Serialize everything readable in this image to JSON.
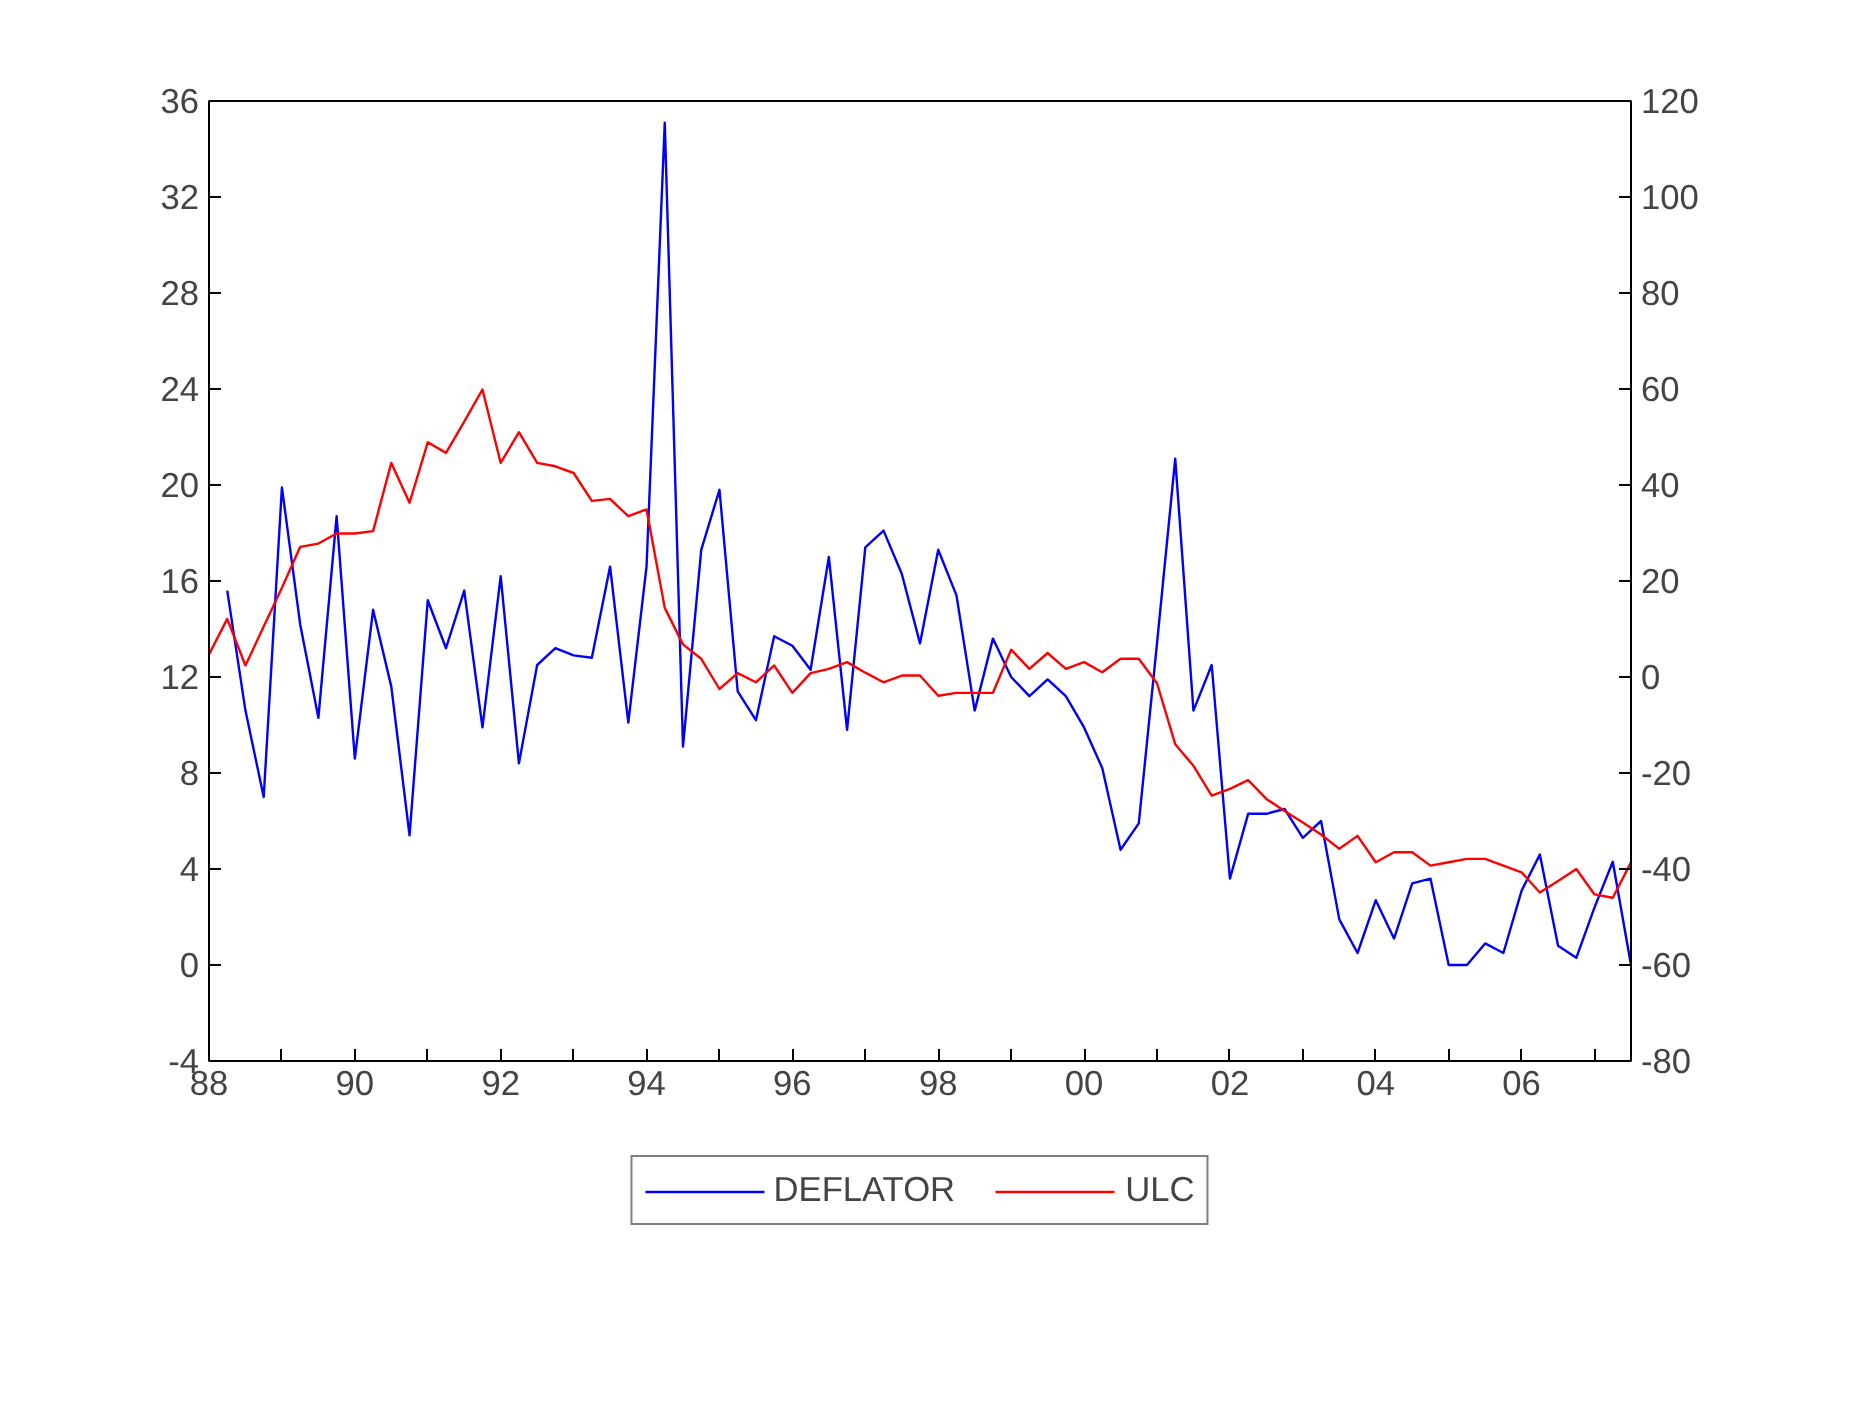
{
  "chart_data": {
    "type": "line",
    "x": [
      1988,
      1988.25,
      1988.5,
      1988.75,
      1989,
      1989.25,
      1989.5,
      1989.75,
      1990,
      1990.25,
      1990.5,
      1990.75,
      1991,
      1991.25,
      1991.5,
      1991.75,
      1992,
      1992.25,
      1992.5,
      1992.75,
      1993,
      1993.25,
      1993.5,
      1993.75,
      1994,
      1994.25,
      1994.5,
      1994.75,
      1995,
      1995.25,
      1995.5,
      1995.75,
      1996,
      1996.25,
      1996.5,
      1996.75,
      1997,
      1997.25,
      1997.5,
      1997.75,
      1998,
      1998.25,
      1998.5,
      1998.75,
      1999,
      1999.25,
      1999.5,
      1999.75,
      2000,
      2000.25,
      2000.5,
      2000.75,
      2001,
      2001.25,
      2001.5,
      2001.75,
      2002,
      2002.25,
      2002.5,
      2002.75,
      2003,
      2003.25,
      2003.5,
      2003.75,
      2004,
      2004.25,
      2004.5,
      2004.75,
      2005,
      2005.25,
      2005.5,
      2005.75,
      2006,
      2006.25,
      2006.5,
      2006.75,
      2007,
      2007.25,
      2007.5
    ],
    "series": [
      {
        "name": "DEFLATOR",
        "color": "#0000ff",
        "values": [
          null,
          15.6,
          10.6,
          7.0,
          19.9,
          14.2,
          10.3,
          18.7,
          8.6,
          14.8,
          11.6,
          5.4,
          15.2,
          13.2,
          15.6,
          9.9,
          16.2,
          8.4,
          12.5,
          13.2,
          12.9,
          12.8,
          16.6,
          10.1,
          16.6,
          35.1,
          9.1,
          17.3,
          19.8,
          11.4,
          10.2,
          13.7,
          13.3,
          12.3,
          17.0,
          9.8,
          17.4,
          18.1,
          16.3,
          13.4,
          17.3,
          15.4,
          10.6,
          13.6,
          12.0,
          11.2,
          11.9,
          11.2,
          9.9,
          8.2,
          4.8,
          5.9,
          13.4,
          21.1,
          10.6,
          12.5,
          3.6,
          6.3,
          6.3,
          6.5,
          5.3,
          6.0,
          1.9,
          0.5,
          2.7,
          1.1,
          3.4,
          3.6,
          0.0,
          0.0,
          0.9,
          0.5,
          3.1,
          4.6,
          0.8,
          0.3,
          2.4,
          4.3,
          0.0
        ]
      },
      {
        "name": "ULC",
        "color": "#ff0000",
        "axis": "y2",
        "values": [
          4.7,
          12.1,
          2.4,
          10.5,
          18.6,
          27.1,
          27.8,
          29.9,
          29.9,
          30.4,
          44.6,
          36.3,
          48.9,
          46.7,
          53.2,
          59.9,
          44.6,
          51.0,
          44.6,
          43.9,
          42.5,
          36.7,
          37.1,
          33.5,
          34.9,
          14.4,
          6.8,
          3.8,
          -2.5,
          0.8,
          -1.1,
          2.4,
          -3.3,
          0.8,
          1.7,
          3.1,
          0.9,
          -1.1,
          0.3,
          0.3,
          -3.9,
          -3.3,
          -3.3,
          -3.3,
          5.7,
          1.7,
          5.0,
          1.7,
          3.1,
          1.0,
          3.8,
          3.8,
          -1.3,
          -14.0,
          -18.5,
          -24.7,
          -23.3,
          -21.5,
          -25.4,
          -27.9,
          -30.3,
          -32.8,
          -35.8,
          -33.1,
          -38.6,
          -36.5,
          -36.5,
          -39.3,
          -38.6,
          -37.9,
          -37.9,
          -39.3,
          -40.7,
          -44.9,
          -42.5,
          -40.0,
          -45.3,
          -46.0,
          -38.6
        ]
      }
    ],
    "xlim": [
      1988,
      2007.5
    ],
    "xticks": [
      {
        "value": 1988,
        "label": "88"
      },
      {
        "value": 1989,
        "label": null
      },
      {
        "value": 1990,
        "label": "90"
      },
      {
        "value": 1991,
        "label": null
      },
      {
        "value": 1992,
        "label": "92"
      },
      {
        "value": 1993,
        "label": null
      },
      {
        "value": 1994,
        "label": "94"
      },
      {
        "value": 1995,
        "label": null
      },
      {
        "value": 1996,
        "label": "96"
      },
      {
        "value": 1997,
        "label": null
      },
      {
        "value": 1998,
        "label": "98"
      },
      {
        "value": 1999,
        "label": null
      },
      {
        "value": 2000,
        "label": "00"
      },
      {
        "value": 2001,
        "label": null
      },
      {
        "value": 2002,
        "label": "02"
      },
      {
        "value": 2003,
        "label": null
      },
      {
        "value": 2004,
        "label": "04"
      },
      {
        "value": 2005,
        "label": null
      },
      {
        "value": 2006,
        "label": "06"
      },
      {
        "value": 2007,
        "label": null
      }
    ],
    "ylim": [
      -4,
      36
    ],
    "yticks": [
      -4,
      0,
      4,
      8,
      12,
      16,
      20,
      24,
      28,
      32,
      36
    ],
    "y2lim": [
      -80,
      120
    ],
    "y2ticks": [
      -80,
      -60,
      -40,
      -20,
      0,
      20,
      40,
      60,
      80,
      100,
      120
    ],
    "legend": "bottom",
    "grid": false,
    "line_style": "solid",
    "marker": "none"
  }
}
